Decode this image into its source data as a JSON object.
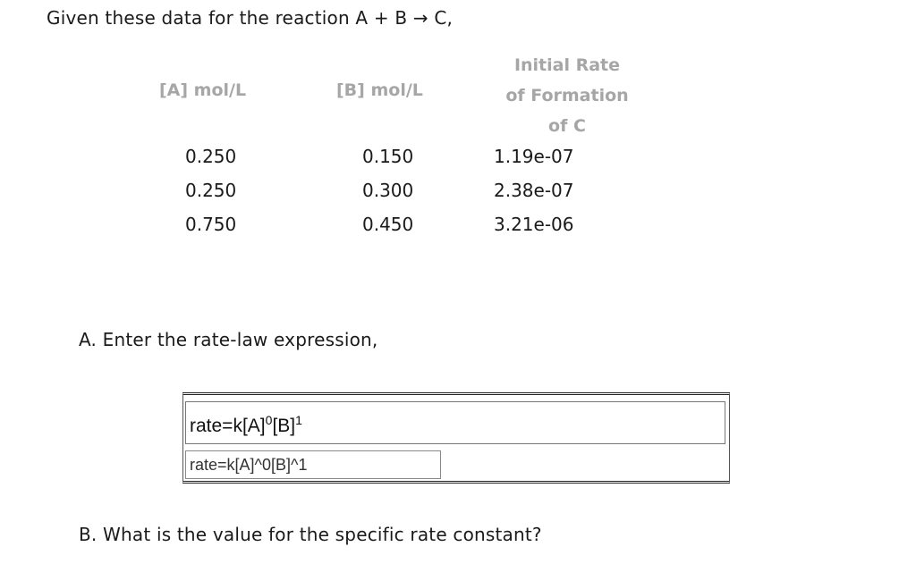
{
  "question": {
    "intro": "Given these data for the reaction A + B → C,"
  },
  "table": {
    "headers": {
      "a": "[A] mol/L",
      "b": "[B] mol/L",
      "rate_line1": "Initial Rate",
      "rate_line2": "of Formation",
      "rate_line3": "of C"
    },
    "rows": [
      {
        "a": "0.250",
        "b": "0.150",
        "rate": "1.19e-07"
      },
      {
        "a": "0.250",
        "b": "0.300",
        "rate": "2.38e-07"
      },
      {
        "a": "0.750",
        "b": "0.450",
        "rate": "3.21e-06"
      }
    ]
  },
  "part_a": {
    "prompt": "A. Enter the rate-law expression,",
    "preview_base": "rate=k[A]",
    "preview_exp_a": "0",
    "preview_mid": "[B]",
    "preview_exp_b": "1",
    "input_value": "rate=k[A]^0[B]^1"
  },
  "part_b": {
    "prompt": "B. What is the value for the specific rate constant?"
  }
}
